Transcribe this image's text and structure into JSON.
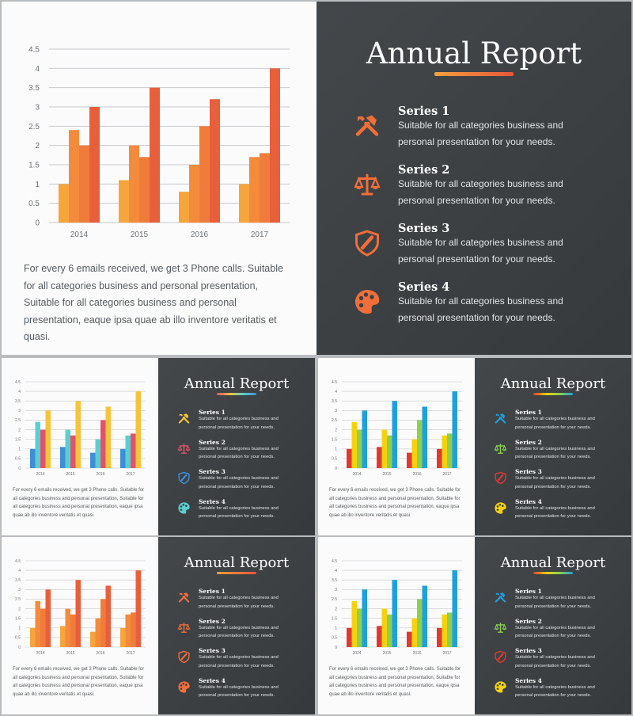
{
  "report": {
    "title": "Annual Report",
    "paragraph": "For every 6 emails received, we get 3 Phone calls. Suitable for all categories business and personal presentation, Suitable for all categories business and personal presentation, eaque ipsa quae ab illo inventore veritatis et quasi.",
    "series": [
      {
        "name": "Series 1",
        "desc": "Suitable for all categories business and personal presentation for your needs.",
        "icon": "tools-icon"
      },
      {
        "name": "Series 2",
        "desc": "Suitable for all categories business and personal presentation for your needs.",
        "icon": "scales-icon"
      },
      {
        "name": "Series 3",
        "desc": "Suitable for all categories business and personal presentation for your needs.",
        "icon": "shield-icon"
      },
      {
        "name": "Series 4",
        "desc": "Suitable for all categories business and personal presentation for your needs.",
        "icon": "palette-icon"
      }
    ]
  },
  "chart_data": {
    "type": "bar",
    "categories": [
      "2014",
      "2015",
      "2016",
      "2017"
    ],
    "yticks": [
      "0",
      "0.5",
      "1",
      "1.5",
      "2",
      "2.5",
      "3",
      "3.5",
      "4",
      "4.5"
    ],
    "ylim": [
      0,
      4.5
    ],
    "series": [
      {
        "values": [
          1.0,
          1.1,
          0.8,
          1.0
        ]
      },
      {
        "values": [
          2.4,
          2.0,
          1.5,
          1.7
        ]
      },
      {
        "values": [
          2.0,
          1.7,
          2.5,
          1.8
        ]
      },
      {
        "values": [
          3.0,
          3.5,
          3.2,
          4.0
        ]
      }
    ]
  },
  "themes": {
    "orange": {
      "bars": [
        "#f6a53c",
        "#f48b3c",
        "#f07c3b",
        "#e85f3c"
      ],
      "icons": [
        "#ef6e3a",
        "#ef6e3a",
        "#ef6e3a",
        "#ef6e3a"
      ],
      "line": [
        "#f4a13c",
        "#e8563a"
      ]
    },
    "multi": {
      "bars": [
        "#3e8fd6",
        "#5bcfcf",
        "#e2536a",
        "#f6c33c"
      ],
      "icons": [
        "#f6c33c",
        "#e2536a",
        "#3e8fd6",
        "#5bcfcf"
      ],
      "line": [
        "#e2536a",
        "#f6c33c",
        "#5bcfcf",
        "#3e8fd6"
      ]
    },
    "bright": {
      "bars": [
        "#e03a2e",
        "#f6d20e",
        "#8bd14e",
        "#1ea0e0"
      ],
      "icons": [
        "#1ea0e0",
        "#8bd14e",
        "#e03a2e",
        "#f6d20e"
      ],
      "line": [
        "#e03a2e",
        "#f6d20e",
        "#8bd14e",
        "#1ea0e0"
      ]
    }
  }
}
